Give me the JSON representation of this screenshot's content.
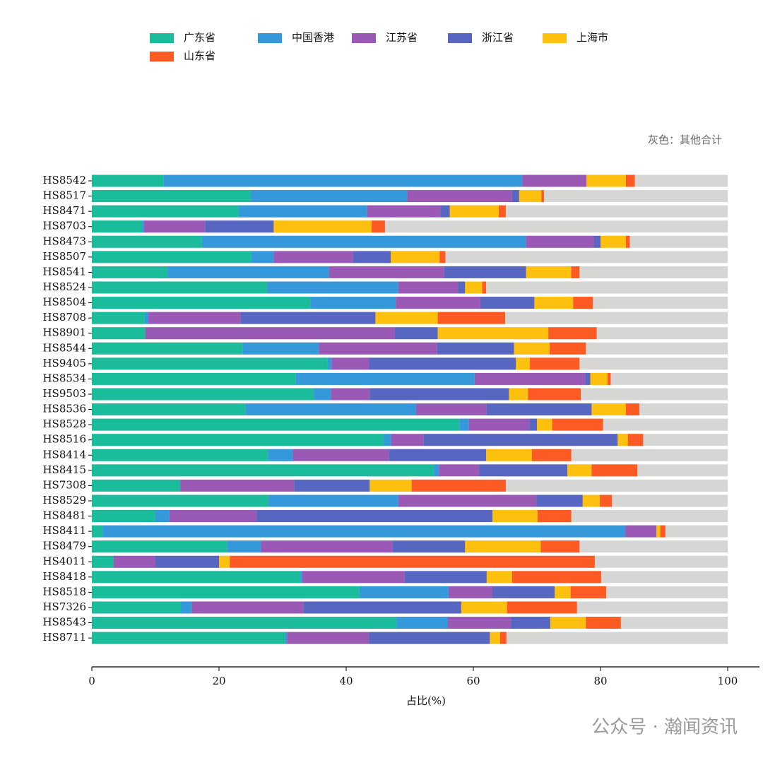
{
  "chart_data": {
    "type": "stacked-barh",
    "annotation": "灰色：其他合计",
    "xlabel": "占比(%)",
    "categories": [
      "HS8542",
      "HS8517",
      "HS8471",
      "HS8703",
      "HS8473",
      "HS8507",
      "HS8541",
      "HS8524",
      "HS8504",
      "HS8708",
      "HS8901",
      "HS8544",
      "HS9405",
      "HS8534",
      "HS9503",
      "HS8536",
      "HS8528",
      "HS8516",
      "HS8414",
      "HS8415",
      "HS7308",
      "HS8529",
      "HS8481",
      "HS8411",
      "HS8479",
      "HS4011",
      "HS8418",
      "HS8518",
      "HS7326",
      "HS8543",
      "HS8711"
    ],
    "series": [
      {
        "name": "广东省",
        "color": "#1abc9c",
        "values": [
          11.3,
          25.0,
          23.1,
          7.9,
          17.3,
          25.1,
          11.9,
          27.6,
          34.4,
          8.3,
          8.4,
          23.7,
          37.1,
          32.1,
          34.9,
          24.2,
          57.8,
          45.9,
          27.7,
          53.8,
          13.9,
          27.8,
          10.0,
          1.7,
          21.3,
          3.4,
          32.8,
          42.1,
          14.0,
          47.9,
          30.4
        ]
      },
      {
        "name": "中国香港",
        "color": "#3498db",
        "values": [
          56.4,
          24.6,
          20.2,
          0.3,
          51.0,
          3.5,
          25.4,
          20.6,
          13.4,
          0.6,
          0,
          12.0,
          0.6,
          28.1,
          2.7,
          26.8,
          1.5,
          1.2,
          3.9,
          0.8,
          0,
          20.4,
          2.2,
          82.2,
          5.3,
          0,
          0.3,
          14.0,
          1.7,
          8.1,
          0.3
        ]
      },
      {
        "name": "江苏省",
        "color": "#9b59b6",
        "values": [
          10.1,
          16.5,
          11.5,
          9.6,
          10.7,
          12.5,
          18.1,
          9.4,
          13.3,
          14.5,
          39.2,
          18.6,
          5.9,
          17.4,
          6.1,
          11.1,
          9.5,
          5.1,
          15.1,
          6.3,
          17.9,
          21.7,
          13.7,
          4.9,
          20.7,
          6.6,
          16.1,
          6.9,
          17.6,
          9.9,
          12.9
        ]
      },
      {
        "name": "浙江省",
        "color": "#5766c0",
        "values": [
          0,
          1.1,
          1.5,
          10.8,
          1.0,
          5.9,
          12.9,
          1.1,
          8.5,
          21.2,
          6.8,
          12.1,
          23.1,
          0.8,
          21.9,
          16.5,
          1.2,
          30.5,
          15.3,
          13.9,
          11.9,
          7.3,
          37.1,
          0,
          11.4,
          10.0,
          12.9,
          9.8,
          24.8,
          6.2,
          19.0
        ]
      },
      {
        "name": "上海市",
        "color": "#fdc00f",
        "values": [
          6.2,
          3.5,
          7.7,
          15.4,
          4.0,
          7.7,
          7.1,
          2.7,
          6.1,
          9.8,
          17.4,
          5.6,
          2.2,
          2.7,
          3.0,
          5.4,
          2.4,
          1.6,
          7.2,
          3.8,
          6.6,
          2.7,
          7.1,
          0.6,
          11.9,
          1.7,
          4.0,
          2.5,
          7.2,
          5.6,
          1.6
        ]
      },
      {
        "name": "山东省",
        "color": "#fe5a24",
        "values": [
          1.4,
          0.4,
          1.1,
          2.1,
          0.6,
          0.9,
          1.3,
          0.6,
          3.1,
          10.6,
          7.6,
          5.7,
          7.8,
          0.5,
          8.3,
          2.1,
          8.0,
          2.4,
          6.2,
          7.2,
          14.8,
          1.9,
          5.3,
          0.8,
          6.1,
          57.4,
          14.0,
          5.6,
          11.0,
          5.5,
          1.0
        ]
      }
    ],
    "other_color": "#d6d6d4",
    "xlim": [
      0,
      105
    ],
    "xticks": [
      0,
      20,
      40,
      60,
      80,
      100
    ],
    "legend": "upper left"
  },
  "watermark": "公众号 · 瀚闻资讯"
}
